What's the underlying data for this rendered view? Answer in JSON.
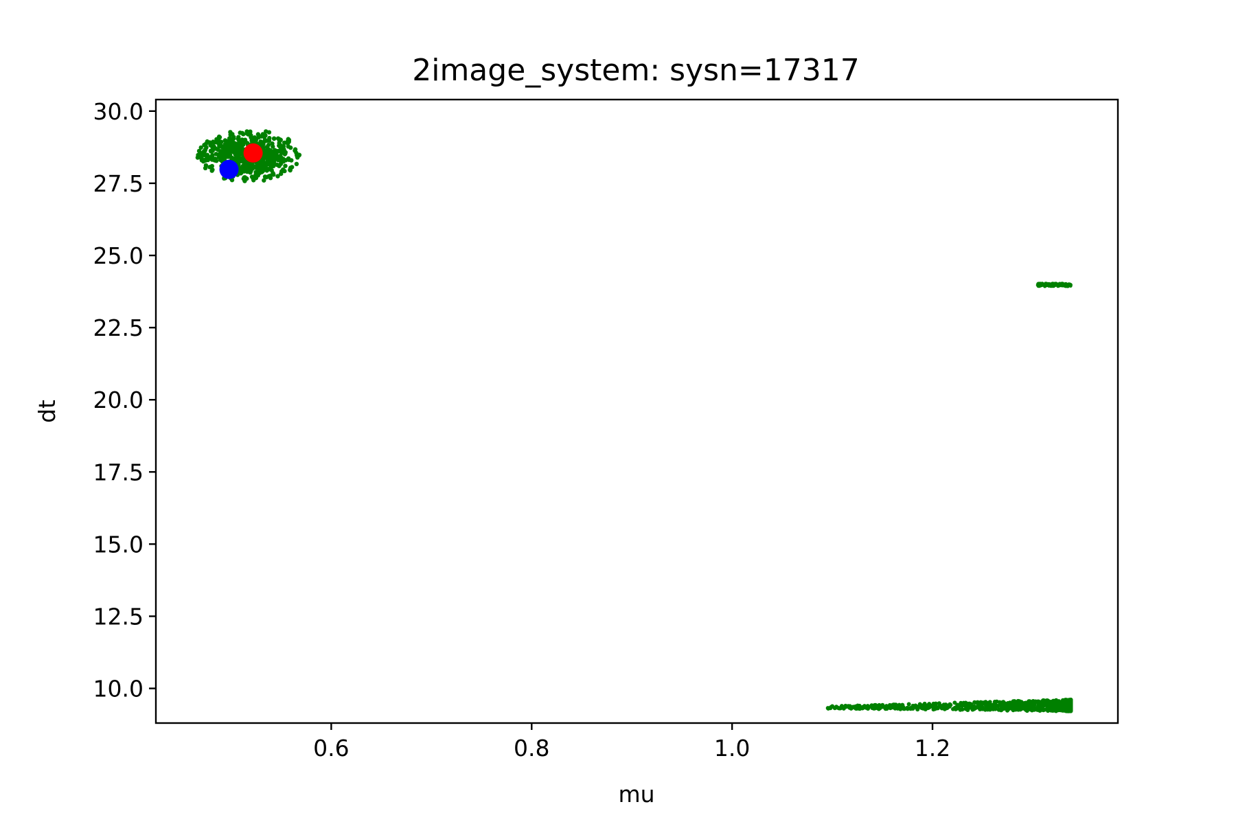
{
  "chart_data": {
    "type": "scatter",
    "title": "2image_system: sysn=17317",
    "xlabel": "mu",
    "ylabel": "dt",
    "xlim": [
      0.425,
      1.385
    ],
    "ylim": [
      8.8,
      30.4
    ],
    "xticks": [
      0.6,
      0.8,
      1.0,
      1.2
    ],
    "xtick_labels": [
      "0.6",
      "0.8",
      "1.0",
      "1.2"
    ],
    "yticks": [
      10.0,
      12.5,
      15.0,
      17.5,
      20.0,
      22.5,
      25.0,
      27.5,
      30.0
    ],
    "ytick_labels": [
      "10.0",
      "12.5",
      "15.0",
      "17.5",
      "20.0",
      "22.5",
      "25.0",
      "27.5",
      "30.0"
    ],
    "grid": false,
    "clusters": [
      {
        "color": "#008000",
        "mu_center": 0.518,
        "mu_range": [
          0.472,
          0.575
        ],
        "dt_center": 28.45,
        "dt_range": [
          27.55,
          29.35
        ]
      },
      {
        "color": "#008000",
        "mu_center": 1.322,
        "mu_range": [
          1.305,
          1.338
        ],
        "dt_center": 23.98,
        "dt_range": [
          23.93,
          24.03
        ]
      },
      {
        "color": "#008000",
        "mu_center": 1.3,
        "mu_range": [
          1.095,
          1.338
        ],
        "dt_center": 9.4,
        "dt_range": [
          9.25,
          9.7
        ]
      }
    ],
    "highlight_points": [
      {
        "mu": 0.522,
        "dt": 28.55,
        "color": "#ff0000"
      },
      {
        "mu": 0.498,
        "dt": 27.98,
        "color": "#0000ff"
      }
    ]
  }
}
